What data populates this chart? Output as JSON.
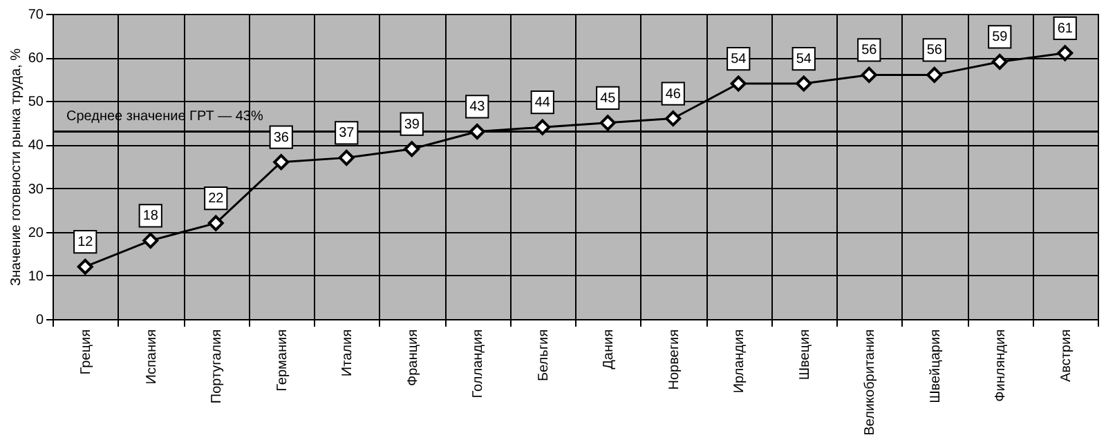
{
  "chart_data": {
    "type": "line",
    "ylabel": "Значение готовности рынка труда, %",
    "categories": [
      "Греция",
      "Испания",
      "Португалия",
      "Германия",
      "Италия",
      "Франция",
      "Голландия",
      "Бельгия",
      "Дания",
      "Норвегия",
      "Ирландия",
      "Швеция",
      "Великобритания",
      "Швейцария",
      "Финляндия",
      "Австрия"
    ],
    "series": [
      {
        "color": "#000000",
        "values": [
          12,
          18,
          22,
          36,
          37,
          39,
          43,
          44,
          45,
          46,
          54,
          54,
          56,
          56,
          59,
          61
        ]
      }
    ],
    "ylim": [
      0,
      70
    ],
    "yticks": [
      0,
      10,
      20,
      30,
      40,
      50,
      60,
      70
    ],
    "ref_lines": [
      {
        "axis": "y",
        "value": 43,
        "label": "Среднее значение ГРТ — 43%",
        "color": "#000000"
      }
    ],
    "data_labels": true,
    "grid": true,
    "marker": "diamond",
    "line_style": "solid"
  }
}
